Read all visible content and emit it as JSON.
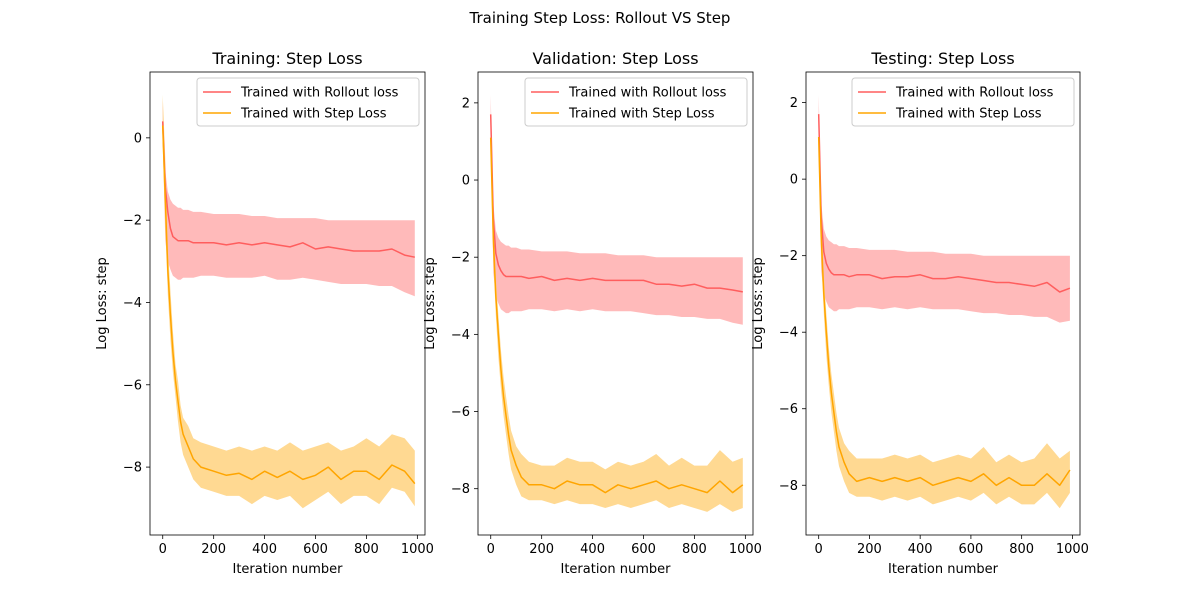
{
  "suptitle": "Training Step Loss: Rollout VS Step",
  "colors": {
    "rollout_line": "#ff5e5e",
    "rollout_band": "#ffb3b3",
    "step_line": "#ffa500",
    "step_band": "#ffd27f"
  },
  "chart_data": [
    {
      "type": "line",
      "title": "Training: Step Loss",
      "xlabel": "Iteration number",
      "ylabel": "Log Loss: step",
      "xlim": [
        -50,
        1030
      ],
      "ylim": [
        -9.65,
        1.6
      ],
      "xticks": [
        0,
        200,
        400,
        600,
        800,
        1000
      ],
      "yticks": [
        -8,
        -6,
        -4,
        -2,
        0
      ],
      "legend": "top-right",
      "x": [
        0,
        10,
        20,
        30,
        40,
        50,
        60,
        70,
        80,
        100,
        120,
        150,
        200,
        250,
        300,
        350,
        400,
        450,
        500,
        550,
        600,
        650,
        700,
        750,
        800,
        850,
        900,
        950,
        990
      ],
      "series": [
        {
          "name": "Trained with Rollout loss",
          "values": [
            0.4,
            -1.2,
            -1.8,
            -2.2,
            -2.4,
            -2.45,
            -2.5,
            -2.5,
            -2.5,
            -2.5,
            -2.55,
            -2.55,
            -2.55,
            -2.6,
            -2.55,
            -2.6,
            -2.55,
            -2.6,
            -2.65,
            -2.55,
            -2.7,
            -2.65,
            -2.7,
            -2.75,
            -2.75,
            -2.75,
            -2.7,
            -2.85,
            -2.9
          ],
          "lower": [
            0.0,
            -2.5,
            -3.0,
            -3.2,
            -3.35,
            -3.4,
            -3.45,
            -3.45,
            -3.4,
            -3.4,
            -3.4,
            -3.35,
            -3.35,
            -3.4,
            -3.4,
            -3.4,
            -3.35,
            -3.45,
            -3.45,
            -3.4,
            -3.45,
            -3.5,
            -3.55,
            -3.55,
            -3.55,
            -3.6,
            -3.6,
            -3.75,
            -3.85
          ],
          "upper": [
            0.9,
            -0.8,
            -1.3,
            -1.5,
            -1.6,
            -1.65,
            -1.7,
            -1.7,
            -1.75,
            -1.75,
            -1.8,
            -1.8,
            -1.85,
            -1.85,
            -1.85,
            -1.9,
            -1.9,
            -1.95,
            -1.95,
            -1.95,
            -1.95,
            -2.0,
            -2.0,
            -2.0,
            -2.0,
            -2.0,
            -2.0,
            -2.0,
            -2.0
          ]
        },
        {
          "name": "Trained with Step Loss",
          "values": [
            0.3,
            -1.5,
            -3.2,
            -4.3,
            -5.2,
            -5.9,
            -6.4,
            -6.9,
            -7.2,
            -7.5,
            -7.8,
            -8.0,
            -8.1,
            -8.2,
            -8.15,
            -8.3,
            -8.1,
            -8.25,
            -8.1,
            -8.3,
            -8.2,
            -8.0,
            -8.3,
            -8.1,
            -8.1,
            -8.3,
            -7.95,
            -8.1,
            -8.4
          ],
          "lower": [
            -0.2,
            -2.2,
            -3.8,
            -4.9,
            -5.7,
            -6.3,
            -6.9,
            -7.4,
            -7.7,
            -8.0,
            -8.3,
            -8.5,
            -8.6,
            -8.7,
            -8.7,
            -8.9,
            -8.7,
            -8.8,
            -8.7,
            -9.0,
            -8.8,
            -8.6,
            -8.9,
            -8.7,
            -8.7,
            -8.9,
            -8.5,
            -8.6,
            -8.95
          ],
          "upper": [
            1.05,
            -0.5,
            -2.6,
            -3.7,
            -4.7,
            -5.5,
            -5.9,
            -6.5,
            -6.8,
            -7.0,
            -7.3,
            -7.4,
            -7.5,
            -7.6,
            -7.5,
            -7.6,
            -7.5,
            -7.6,
            -7.4,
            -7.6,
            -7.5,
            -7.4,
            -7.6,
            -7.5,
            -7.3,
            -7.5,
            -7.2,
            -7.3,
            -7.6
          ]
        }
      ]
    },
    {
      "type": "line",
      "title": "Validation: Step Loss",
      "xlabel": "Iteration number",
      "ylabel": "Log Loss: step",
      "xlim": [
        -50,
        1030
      ],
      "ylim": [
        -9.2,
        2.8
      ],
      "xticks": [
        0,
        200,
        400,
        600,
        800,
        1000
      ],
      "yticks": [
        -8,
        -6,
        -4,
        -2,
        0,
        2
      ],
      "legend": "top-right",
      "x": [
        0,
        10,
        20,
        30,
        40,
        50,
        60,
        70,
        80,
        100,
        120,
        150,
        200,
        250,
        300,
        350,
        400,
        450,
        500,
        550,
        600,
        650,
        700,
        750,
        800,
        850,
        900,
        950,
        990
      ],
      "series": [
        {
          "name": "Trained with Rollout loss",
          "values": [
            1.7,
            -1.0,
            -1.9,
            -2.2,
            -2.35,
            -2.45,
            -2.5,
            -2.5,
            -2.5,
            -2.5,
            -2.5,
            -2.55,
            -2.5,
            -2.6,
            -2.55,
            -2.6,
            -2.55,
            -2.6,
            -2.6,
            -2.6,
            -2.6,
            -2.7,
            -2.7,
            -2.75,
            -2.7,
            -2.8,
            -2.8,
            -2.85,
            -2.9
          ],
          "lower": [
            1.2,
            -2.4,
            -3.0,
            -3.2,
            -3.35,
            -3.4,
            -3.45,
            -3.45,
            -3.4,
            -3.4,
            -3.4,
            -3.35,
            -3.35,
            -3.4,
            -3.35,
            -3.4,
            -3.35,
            -3.4,
            -3.4,
            -3.4,
            -3.45,
            -3.5,
            -3.5,
            -3.55,
            -3.55,
            -3.6,
            -3.6,
            -3.7,
            -3.75
          ],
          "upper": [
            2.2,
            -0.6,
            -1.3,
            -1.5,
            -1.6,
            -1.65,
            -1.7,
            -1.7,
            -1.75,
            -1.75,
            -1.8,
            -1.8,
            -1.85,
            -1.85,
            -1.85,
            -1.9,
            -1.9,
            -1.9,
            -1.95,
            -1.95,
            -1.95,
            -2.0,
            -2.0,
            -2.0,
            -2.0,
            -2.0,
            -2.0,
            -2.0,
            -2.0
          ]
        },
        {
          "name": "Trained with Step Loss",
          "values": [
            1.1,
            -1.5,
            -3.0,
            -4.0,
            -4.9,
            -5.6,
            -6.1,
            -6.6,
            -7.0,
            -7.4,
            -7.7,
            -7.9,
            -7.9,
            -8.0,
            -7.8,
            -7.9,
            -7.9,
            -8.1,
            -7.9,
            -8.0,
            -7.9,
            -7.8,
            -8.0,
            -7.9,
            -8.0,
            -8.1,
            -7.8,
            -8.1,
            -7.9
          ],
          "lower": [
            0.6,
            -2.1,
            -3.5,
            -4.6,
            -5.4,
            -6.1,
            -6.6,
            -7.1,
            -7.5,
            -7.9,
            -8.2,
            -8.3,
            -8.3,
            -8.4,
            -8.3,
            -8.4,
            -8.4,
            -8.5,
            -8.4,
            -8.5,
            -8.4,
            -8.3,
            -8.5,
            -8.4,
            -8.5,
            -8.6,
            -8.4,
            -8.6,
            -8.5
          ],
          "upper": [
            1.6,
            -0.9,
            -2.5,
            -3.5,
            -4.4,
            -5.1,
            -5.6,
            -6.1,
            -6.5,
            -6.9,
            -7.1,
            -7.3,
            -7.4,
            -7.4,
            -7.2,
            -7.3,
            -7.3,
            -7.5,
            -7.3,
            -7.4,
            -7.3,
            -7.1,
            -7.4,
            -7.2,
            -7.4,
            -7.4,
            -7.0,
            -7.3,
            -7.2
          ]
        }
      ]
    },
    {
      "type": "line",
      "title": "Testing: Step Loss",
      "xlabel": "Iteration number",
      "ylabel": "Log Loss: step",
      "xlim": [
        -50,
        1030
      ],
      "ylim": [
        -9.3,
        2.8
      ],
      "xticks": [
        0,
        200,
        400,
        600,
        800,
        1000
      ],
      "yticks": [
        -8,
        -6,
        -4,
        -2,
        0,
        2
      ],
      "legend": "top-right",
      "x": [
        0,
        10,
        20,
        30,
        40,
        50,
        60,
        70,
        80,
        100,
        120,
        150,
        200,
        250,
        300,
        350,
        400,
        450,
        500,
        550,
        600,
        650,
        700,
        750,
        800,
        850,
        900,
        950,
        990
      ],
      "series": [
        {
          "name": "Trained with Rollout loss",
          "values": [
            1.7,
            -1.0,
            -1.9,
            -2.2,
            -2.35,
            -2.45,
            -2.5,
            -2.5,
            -2.5,
            -2.5,
            -2.55,
            -2.5,
            -2.5,
            -2.6,
            -2.55,
            -2.55,
            -2.5,
            -2.6,
            -2.6,
            -2.55,
            -2.6,
            -2.65,
            -2.7,
            -2.7,
            -2.75,
            -2.8,
            -2.7,
            -2.95,
            -2.85
          ],
          "lower": [
            1.2,
            -2.4,
            -3.0,
            -3.2,
            -3.35,
            -3.4,
            -3.45,
            -3.45,
            -3.4,
            -3.4,
            -3.4,
            -3.35,
            -3.35,
            -3.4,
            -3.35,
            -3.4,
            -3.35,
            -3.4,
            -3.4,
            -3.4,
            -3.45,
            -3.5,
            -3.5,
            -3.55,
            -3.55,
            -3.6,
            -3.6,
            -3.75,
            -3.7
          ],
          "upper": [
            2.2,
            -0.6,
            -1.3,
            -1.5,
            -1.6,
            -1.65,
            -1.7,
            -1.7,
            -1.75,
            -1.75,
            -1.8,
            -1.8,
            -1.85,
            -1.85,
            -1.85,
            -1.9,
            -1.9,
            -1.9,
            -1.95,
            -1.95,
            -1.95,
            -2.0,
            -2.0,
            -2.0,
            -2.0,
            -2.0,
            -2.0,
            -2.0,
            -2.0
          ]
        },
        {
          "name": "Trained with Step Loss",
          "values": [
            1.1,
            -1.5,
            -3.0,
            -4.0,
            -4.9,
            -5.6,
            -6.1,
            -6.6,
            -7.0,
            -7.4,
            -7.7,
            -7.9,
            -7.8,
            -7.9,
            -7.8,
            -7.9,
            -7.8,
            -8.0,
            -7.9,
            -7.8,
            -7.9,
            -7.7,
            -8.0,
            -7.8,
            -8.0,
            -8.0,
            -7.7,
            -8.0,
            -7.6
          ],
          "lower": [
            0.6,
            -2.1,
            -3.5,
            -4.6,
            -5.4,
            -6.1,
            -6.6,
            -7.1,
            -7.5,
            -7.9,
            -8.2,
            -8.3,
            -8.3,
            -8.4,
            -8.3,
            -8.4,
            -8.3,
            -8.5,
            -8.4,
            -8.3,
            -8.4,
            -8.2,
            -8.5,
            -8.3,
            -8.5,
            -8.5,
            -8.2,
            -8.6,
            -8.2
          ],
          "upper": [
            1.6,
            -0.9,
            -2.5,
            -3.5,
            -4.4,
            -5.1,
            -5.6,
            -6.1,
            -6.5,
            -6.9,
            -7.1,
            -7.3,
            -7.3,
            -7.3,
            -7.2,
            -7.3,
            -7.2,
            -7.4,
            -7.3,
            -7.2,
            -7.3,
            -7.0,
            -7.4,
            -7.2,
            -7.4,
            -7.3,
            -6.9,
            -7.3,
            -7.1
          ]
        }
      ]
    }
  ]
}
